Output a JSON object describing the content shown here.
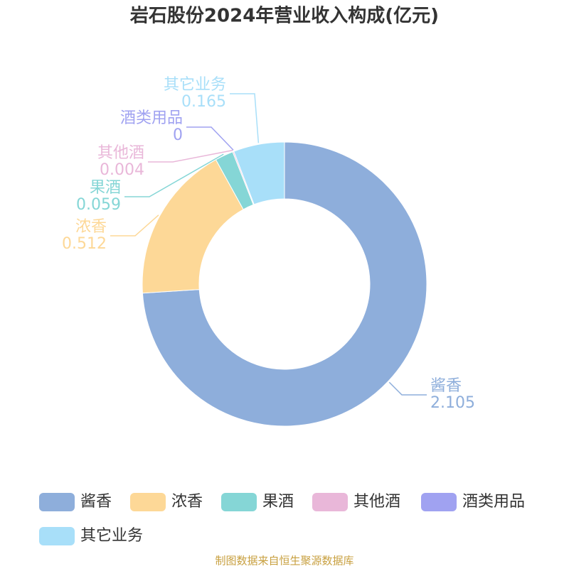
{
  "chart_data": {
    "type": "donut",
    "title": "岩石股份2024年营业收入构成(亿元)",
    "categories": [
      "酱香",
      "浓香",
      "果酒",
      "其他酒",
      "酒类用品",
      "其它业务"
    ],
    "values": [
      2.105,
      0.512,
      0.059,
      0.004,
      0,
      0.165
    ],
    "colors": [
      "#8eaedb",
      "#fdd897",
      "#85d6d6",
      "#e9b7d9",
      "#a0a2f1",
      "#a8dff9"
    ],
    "source": "制图数据来自恒生聚源数据库"
  }
}
